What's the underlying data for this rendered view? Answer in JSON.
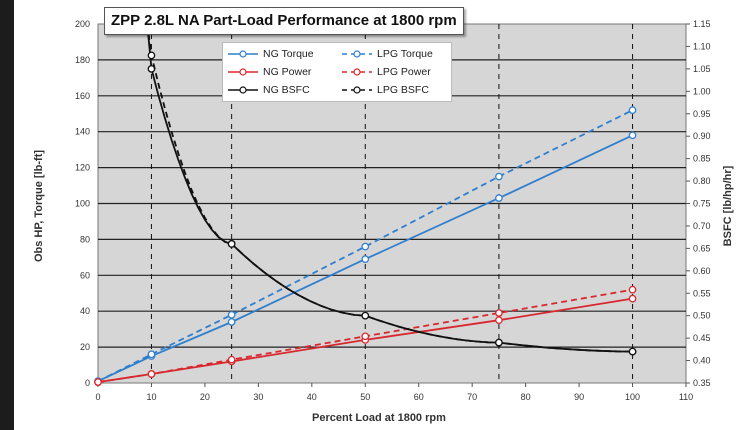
{
  "chart_data": {
    "type": "line",
    "title": "ZPP 2.8L NA Part-Load Performance at 1800 rpm",
    "xlabel": "Percent Load at 1800 rpm",
    "ylabel": "Obs HP, Torque [lb-ft]",
    "y2label": "BSFC [lb/hp/hr]",
    "xlim": [
      0,
      110
    ],
    "ylim": [
      0,
      200
    ],
    "y2lim": [
      0.35,
      1.15
    ],
    "xticks": [
      "0",
      "10",
      "20",
      "30",
      "40",
      "50",
      "60",
      "70",
      "80",
      "90",
      "100",
      "110"
    ],
    "yticks": [
      "0",
      "20",
      "40",
      "60",
      "80",
      "100",
      "120",
      "140",
      "160",
      "180",
      "200"
    ],
    "y2ticks": [
      "0.35",
      "0.40",
      "0.45",
      "0.50",
      "0.55",
      "0.60",
      "0.65",
      "0.70",
      "0.75",
      "0.80",
      "0.85",
      "0.90",
      "0.95",
      "1.00",
      "1.05",
      "1.10",
      "1.15"
    ],
    "grid": "vertical dashed at data points, horizontal at every 20",
    "legend_position": "top-center",
    "colors": {
      "plot_background": "#d6d6d6",
      "torque": "#2f7fce",
      "power": "#d9272e",
      "bsfc": "#111111"
    },
    "series": [
      {
        "name": "NG Torque",
        "axis": "left",
        "dash": false,
        "color": "#2f7fce",
        "x": [
          0,
          10,
          25,
          50,
          75,
          100
        ],
        "y": [
          1,
          15,
          34,
          69,
          103,
          138
        ]
      },
      {
        "name": "LPG Torque",
        "axis": "left",
        "dash": true,
        "color": "#2f7fce",
        "x": [
          0,
          10,
          25,
          50,
          75,
          100
        ],
        "y": [
          1,
          16,
          38,
          76,
          115,
          152
        ]
      },
      {
        "name": "NG Power",
        "axis": "left",
        "dash": false,
        "color": "#d9272e",
        "x": [
          0,
          10,
          25,
          50,
          75,
          100
        ],
        "y": [
          0.5,
          5,
          12,
          24,
          35,
          47
        ]
      },
      {
        "name": "LPG Power",
        "axis": "left",
        "dash": true,
        "color": "#d9272e",
        "x": [
          0,
          10,
          25,
          50,
          75,
          100
        ],
        "y": [
          0.5,
          5,
          13,
          26,
          39,
          52
        ]
      },
      {
        "name": "NG BSFC",
        "axis": "right",
        "dash": false,
        "color": "#111111",
        "x": [
          10,
          25,
          50,
          75,
          100
        ],
        "y": [
          1.05,
          0.66,
          0.5,
          0.44,
          0.42
        ]
      },
      {
        "name": "LPG BSFC",
        "axis": "right",
        "dash": true,
        "color": "#111111",
        "x": [
          10,
          25,
          50,
          75,
          100
        ],
        "y": [
          1.08,
          0.66,
          0.5,
          0.44,
          0.42
        ]
      }
    ]
  }
}
